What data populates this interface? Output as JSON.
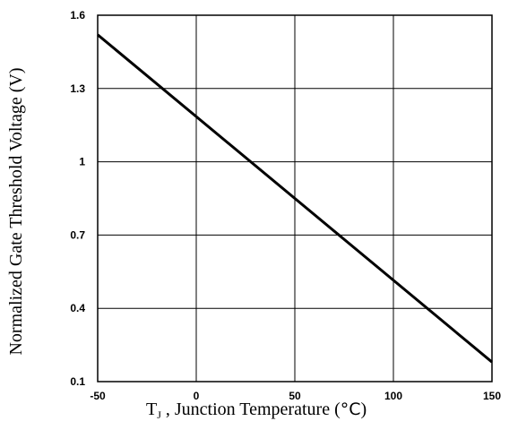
{
  "chart_data": {
    "type": "line",
    "title": "",
    "xlabel_prefix": "T",
    "xlabel_sub": "J",
    "xlabel_rest": " , Junction Temperature (",
    "xlabel_unit": "°C",
    "xlabel_close": ")",
    "ylabel": "Normalized Gate Threshold Voltage (V)",
    "xlim": [
      -50,
      150
    ],
    "ylim": [
      0.1,
      1.6
    ],
    "xticks": [
      -50,
      0,
      50,
      100,
      150
    ],
    "xtick_labels": [
      "-50",
      "0",
      "50",
      "100",
      "150"
    ],
    "yticks": [
      0.1,
      0.4,
      0.7,
      1,
      1.3,
      1.6
    ],
    "ytick_labels": [
      "0.1",
      "0.4",
      "0.7",
      "1",
      "1.3",
      "1.6"
    ],
    "grid": true,
    "series": [
      {
        "x": [
          -50,
          150
        ],
        "y": [
          1.52,
          0.18
        ]
      }
    ]
  }
}
